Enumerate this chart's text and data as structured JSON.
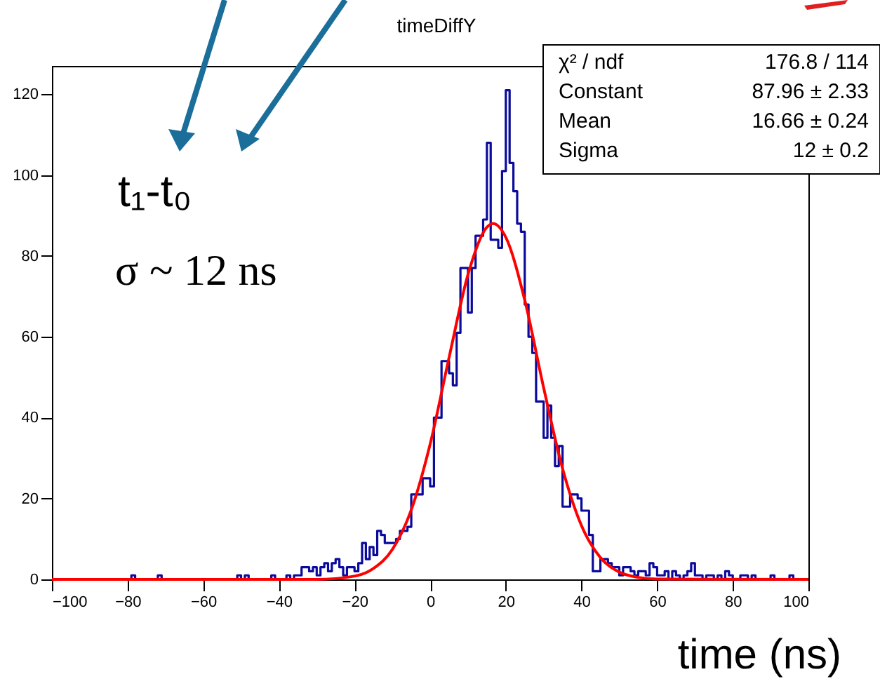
{
  "chart_data": {
    "type": "histogram",
    "title": "timeDiffY",
    "xlabel": "time (ns)",
    "xlim": [
      -100,
      100
    ],
    "xticks": [
      -100,
      -80,
      -60,
      -40,
      -20,
      0,
      20,
      40,
      60,
      80,
      100
    ],
    "ylim": [
      0,
      127
    ],
    "yticks": [
      0,
      20,
      40,
      60,
      80,
      100,
      120
    ],
    "grid": false,
    "annotations": [
      "t₁-t₀",
      "σ ~ 12 ns",
      "χ² / ndf",
      "176.8 / 114",
      "Constant",
      "87.96 ± 2.33",
      "Mean",
      "16.66 ± 0.24",
      "Sigma",
      "12 ± 0.2"
    ],
    "series": [
      {
        "type": "histogram",
        "color": "#0a0a9c",
        "bins": [
          -100,
          -99,
          -98,
          -97,
          -96,
          -95,
          -94,
          -93,
          -92,
          -91,
          -90,
          -89,
          -88,
          -87,
          -86,
          -85,
          -84,
          -83,
          -82,
          -81,
          -80,
          -79,
          -78,
          -77,
          -76,
          -75,
          -74,
          -73,
          -72,
          -71,
          -70,
          -69,
          -68,
          -67,
          -66,
          -65,
          -64,
          -63,
          -62,
          -61,
          -60,
          -59,
          -58,
          -57,
          -56,
          -55,
          -54,
          -53,
          -52,
          -51,
          -50,
          -49,
          -48,
          -47,
          -46,
          -45,
          -44,
          -43,
          -42,
          -41,
          -40,
          -39,
          -38,
          -37,
          -36,
          -35,
          -34,
          -33,
          -32,
          -31,
          -30,
          -29,
          -28,
          -27,
          -26,
          -25,
          -24,
          -23,
          -22,
          -21,
          -20,
          -19,
          -18,
          -17,
          -16,
          -15,
          -14,
          -13,
          -12,
          -11,
          -10,
          -9,
          -8,
          -7,
          -6,
          -5,
          -4,
          -3,
          -2,
          -1,
          0,
          1,
          2,
          3,
          4,
          5,
          6,
          7,
          8,
          9,
          10,
          11,
          12,
          13,
          14,
          15,
          16,
          17,
          18,
          19,
          20,
          21,
          22,
          23,
          24,
          25,
          26,
          27,
          28,
          29,
          30,
          31,
          32,
          33,
          34,
          35,
          36,
          37,
          38,
          39,
          40,
          41,
          42,
          43,
          44,
          45,
          46,
          47,
          48,
          49,
          50,
          51,
          52,
          53,
          54,
          55,
          56,
          57,
          58,
          59,
          60,
          61,
          62,
          63,
          64,
          65,
          66,
          67,
          68,
          69,
          70,
          71,
          72,
          73,
          74,
          75,
          76,
          77,
          78,
          79,
          80,
          81,
          82,
          83,
          84,
          85,
          86,
          87,
          88,
          89,
          90,
          91,
          92,
          93,
          94,
          95,
          96,
          97,
          98,
          99,
          100
        ],
        "values": [
          0,
          0,
          0,
          0,
          0,
          0,
          0,
          0,
          0,
          0,
          0,
          0,
          0,
          0,
          0,
          0,
          0,
          0,
          0,
          0,
          0,
          1,
          0,
          0,
          0,
          0,
          0,
          0,
          1,
          0,
          0,
          0,
          0,
          0,
          0,
          0,
          0,
          0,
          0,
          0,
          0,
          0,
          0,
          0,
          0,
          0,
          0,
          0,
          0,
          1,
          0,
          1,
          0,
          0,
          0,
          0,
          0,
          0,
          1,
          0,
          0,
          0,
          1,
          0,
          1,
          1,
          3,
          3,
          2,
          3,
          1,
          3,
          4,
          2,
          4,
          5,
          3,
          1,
          3,
          3,
          2,
          4,
          9,
          5,
          8,
          6,
          12,
          11,
          9,
          9,
          9,
          10,
          12,
          12,
          13,
          21,
          21,
          21,
          25,
          25,
          23,
          40,
          40,
          54,
          54,
          51,
          48,
          61,
          77,
          77,
          66,
          77,
          85,
          85,
          89,
          108,
          84,
          84,
          82,
          101,
          121,
          103,
          96,
          88,
          86,
          68,
          60,
          56,
          44,
          44,
          35,
          43,
          35,
          28,
          33,
          18,
          18,
          21,
          21,
          20,
          17,
          17,
          11,
          2,
          2,
          5,
          5,
          4,
          3,
          3,
          1,
          3,
          3,
          2,
          1,
          2,
          2,
          1,
          4,
          3,
          1,
          1,
          2,
          0,
          2,
          1,
          0,
          1,
          2,
          4,
          1,
          1,
          0,
          1,
          1,
          0,
          1,
          0,
          2,
          1,
          0,
          0,
          1,
          1,
          0,
          1,
          0,
          0,
          0,
          0,
          1,
          0,
          0,
          0,
          0,
          1,
          0,
          0,
          0,
          0
        ]
      },
      {
        "type": "line",
        "color": "#ff0000",
        "x": [
          -100,
          -30,
          -20,
          -15,
          -10,
          -5,
          0,
          5,
          10,
          15,
          16.66,
          20,
          25,
          30,
          35,
          40,
          45,
          50,
          55,
          60,
          100
        ],
        "values": [
          0,
          0,
          0.8,
          2.7,
          7.4,
          17.2,
          33.5,
          54.9,
          75.4,
          87.1,
          88,
          84.6,
          69.1,
          47.4,
          27.4,
          13.3,
          5.4,
          1.8,
          0.5,
          0.1,
          0
        ]
      }
    ]
  }
}
